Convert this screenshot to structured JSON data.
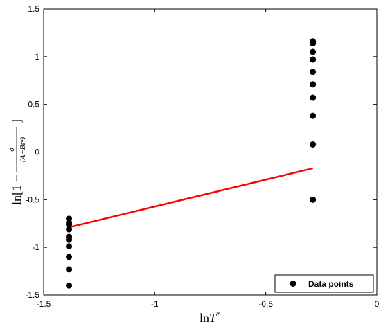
{
  "chart_data": {
    "type": "scatter",
    "title": "",
    "xlabel": "lnT*",
    "ylabel": "ln[1 − σ/(A+Bεⁿ)]",
    "xlim": [
      -1.5,
      0
    ],
    "ylim": [
      -1.5,
      1.5
    ],
    "xticks": [
      "-1.5",
      "-1",
      "-0.5",
      "0"
    ],
    "yticks": [
      "-1.5",
      "-1",
      "-0.5",
      "0",
      "0.5",
      "1",
      "1.5"
    ],
    "grid": false,
    "legend_position": "bottom-right",
    "series": [
      {
        "name": "Data points",
        "kind": "scatter",
        "color": "#000000",
        "x": [
          -1.386,
          -1.386,
          -1.386,
          -1.386,
          -1.386,
          -1.386,
          -1.386,
          -1.386,
          -1.386,
          -1.386,
          -0.288,
          -0.288,
          -0.288,
          -0.288,
          -0.288,
          -0.288,
          -0.288,
          -0.288,
          -0.288,
          -0.288,
          -0.288
        ],
        "y": [
          -0.7,
          -0.74,
          -0.81,
          -0.89,
          -0.92,
          -0.99,
          -1.1,
          -1.23,
          -1.4,
          -0.76,
          1.16,
          1.14,
          1.05,
          0.97,
          0.84,
          0.71,
          0.57,
          0.38,
          0.08,
          -0.5,
          1.15
        ]
      },
      {
        "kind": "line",
        "color": "#ff0000",
        "x": [
          -1.386,
          -0.288
        ],
        "y": [
          -0.79,
          -0.17
        ]
      }
    ]
  }
}
